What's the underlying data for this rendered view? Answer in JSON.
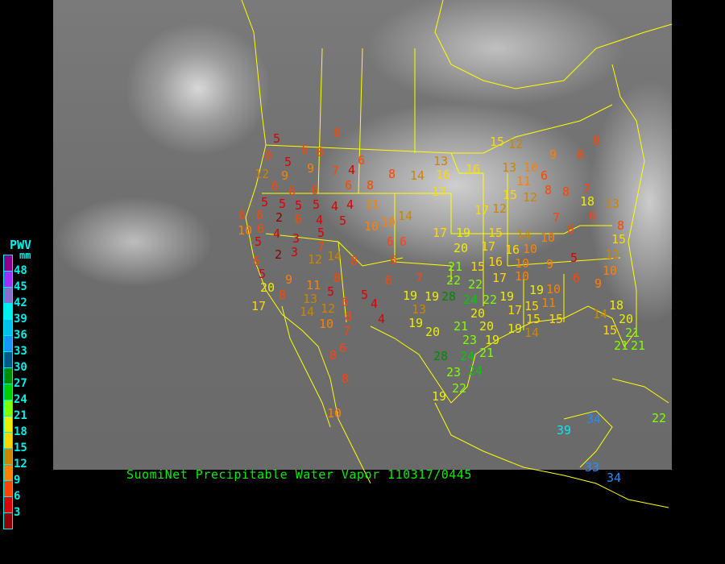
{
  "caption": "SuomiNet Precipitable Water Vapor  110317/0445",
  "legend": {
    "title": "PWV",
    "unit": "mm",
    "labels": [
      "48",
      "45",
      "42",
      "39",
      "36",
      "33",
      "30",
      "27",
      "24",
      "21",
      "18",
      "15",
      "12",
      "9",
      "6",
      "3"
    ],
    "colors": [
      "#8b008b",
      "#9b30ff",
      "#8470cd",
      "#00eeee",
      "#00bfee",
      "#1e90ff",
      "#00578b",
      "#008b00",
      "#00cd00",
      "#7fff00",
      "#eeee00",
      "#ffd700",
      "#cd8500",
      "#ff8000",
      "#ff4500",
      "#dd0000",
      "#8b0000"
    ]
  },
  "map": {
    "boundary_color": "#ffff00"
  },
  "stations": [
    8,
    5,
    6,
    8,
    8,
    5,
    9,
    7,
    4,
    6,
    8,
    14,
    13,
    16,
    16,
    15,
    12,
    9,
    8,
    8,
    13,
    10,
    11,
    6,
    12,
    9,
    6,
    6,
    6,
    6,
    8,
    17,
    15,
    12,
    8,
    8,
    7,
    18,
    13,
    5,
    5,
    5,
    5,
    4,
    4,
    11,
    6,
    6,
    2,
    6,
    4,
    5,
    10,
    10,
    14,
    17,
    12,
    7,
    6,
    10,
    6,
    4,
    3,
    5,
    17,
    19,
    15,
    14,
    10,
    6,
    8,
    5,
    2,
    3,
    7,
    12,
    14,
    6,
    6,
    20,
    17,
    16,
    10,
    15,
    6,
    5,
    6,
    8,
    16,
    10,
    9,
    5,
    12,
    21,
    15,
    17,
    10,
    20,
    9,
    11,
    8,
    6,
    7,
    22,
    22,
    10,
    10,
    6,
    9,
    8,
    17,
    13,
    5,
    19,
    19,
    28,
    24,
    22,
    19,
    19,
    5,
    6,
    4,
    13,
    11,
    14,
    12,
    8,
    4,
    19,
    20,
    15,
    17,
    15,
    15,
    14,
    18,
    20,
    10,
    7,
    20,
    21,
    20,
    23,
    19,
    19,
    14,
    15,
    21,
    21,
    21,
    6,
    8,
    28,
    24,
    21,
    23,
    24,
    8,
    22,
    19,
    10,
    39,
    34,
    22,
    33,
    34
  ]
}
